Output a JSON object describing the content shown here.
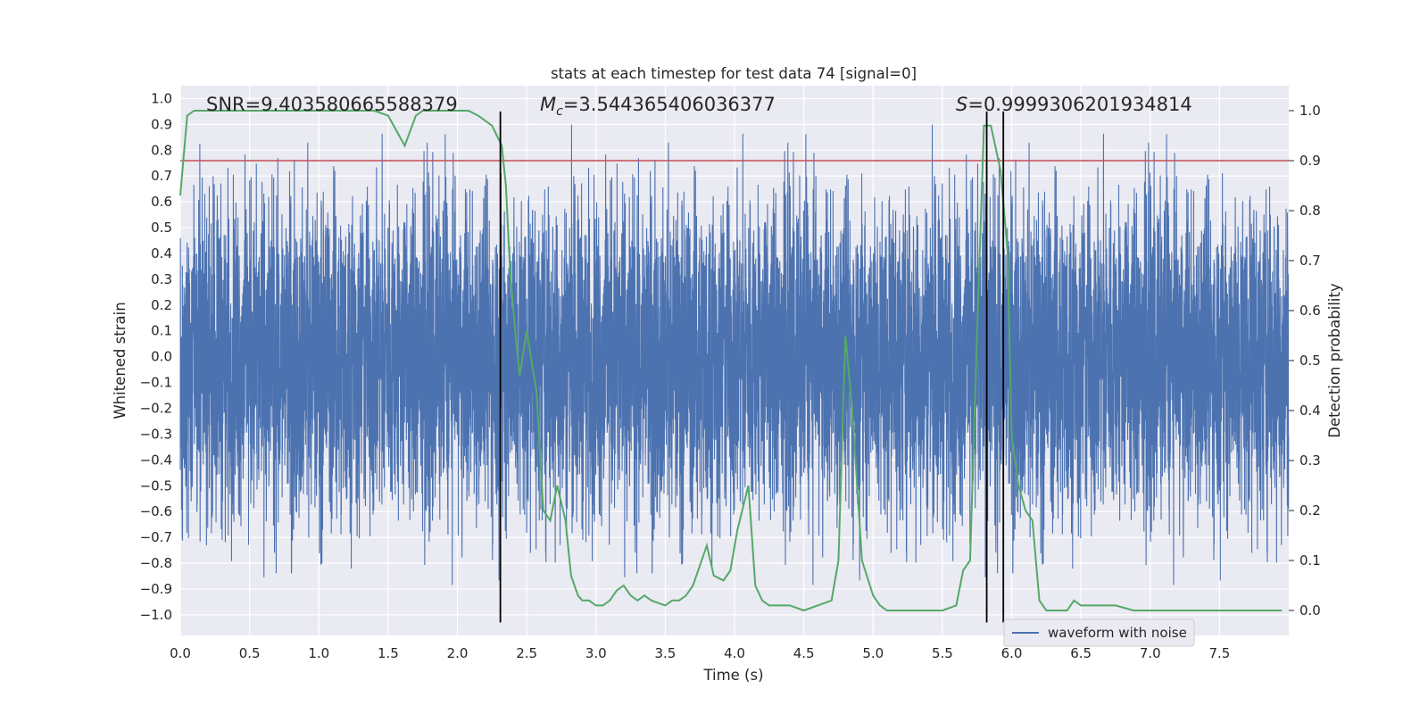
{
  "chart_data": {
    "type": "line",
    "title": "stats at each timestep for test data 74 [signal=0]",
    "xlabel": "Time (s)",
    "ylabel_left": "Whitened strain",
    "ylabel_right": "Detection probability",
    "xlim": [
      0.0,
      8.0
    ],
    "ylim_left": [
      -1.08,
      1.05
    ],
    "ylim_right": [
      -0.05,
      1.05
    ],
    "x_ticks": [
      "0.0",
      "0.5",
      "1.0",
      "1.5",
      "2.0",
      "2.5",
      "3.0",
      "3.5",
      "4.0",
      "4.5",
      "5.0",
      "5.5",
      "6.0",
      "6.5",
      "7.0",
      "7.5"
    ],
    "y_ticks_left": [
      "1.0",
      "0.9",
      "0.8",
      "0.7",
      "0.6",
      "0.5",
      "0.4",
      "0.3",
      "0.2",
      "0.1",
      "0.0",
      "−0.1",
      "−0.2",
      "−0.3",
      "−0.4",
      "−0.5",
      "−0.6",
      "−0.7",
      "−0.8",
      "−0.9",
      "−1.0"
    ],
    "y_ticks_right": [
      "1.0",
      "0.9",
      "0.8",
      "0.7",
      "0.6",
      "0.5",
      "0.4",
      "0.3",
      "0.2",
      "0.1",
      "0.0"
    ],
    "grid": true,
    "legend_position": "bottom-right",
    "annotations": {
      "snr": "SNR=9.403580665588379",
      "mc_symbol": "M",
      "mc_sub": "c",
      "mc_value": "=3.544365406036377",
      "s_symbol": "S",
      "s_value": "=0.9999306201934814"
    },
    "colors": {
      "waveform": "#4c72b0",
      "probability": "#55a868",
      "threshold": "#c44e52",
      "marker": "#000000",
      "background": "#eaeaf2"
    },
    "series": [
      {
        "name": "waveform with noise",
        "axis": "left",
        "note_values": "dense noisy strain signal, envelope approx ±0.5 with spikes",
        "sample_count": 8000,
        "envelope": [
          -0.5,
          0.55
        ],
        "spike_range": [
          -1.0,
          0.93
        ]
      },
      {
        "axis": "right",
        "x": [
          0.0,
          0.05,
          0.1,
          0.15,
          0.25,
          0.5,
          0.75,
          1.0,
          1.1,
          1.25,
          1.4,
          1.5,
          1.62,
          1.7,
          1.75,
          1.82,
          1.9,
          2.0,
          2.08,
          2.15,
          2.25,
          2.32,
          2.35,
          2.38,
          2.42,
          2.45,
          2.5,
          2.57,
          2.62,
          2.67,
          2.72,
          2.78,
          2.82,
          2.87,
          2.9,
          2.95,
          3.0,
          3.05,
          3.1,
          3.15,
          3.2,
          3.25,
          3.3,
          3.35,
          3.4,
          3.5,
          3.55,
          3.6,
          3.65,
          3.7,
          3.8,
          3.85,
          3.92,
          3.97,
          4.02,
          4.1,
          4.15,
          4.2,
          4.25,
          4.3,
          4.4,
          4.5,
          4.6,
          4.7,
          4.75,
          4.8,
          4.85,
          4.92,
          5.0,
          5.05,
          5.1,
          5.15,
          5.3,
          5.5,
          5.6,
          5.65,
          5.7,
          5.75,
          5.8,
          5.85,
          5.92,
          5.97,
          6.0,
          6.05,
          6.1,
          6.15,
          6.2,
          6.25,
          6.28,
          6.32,
          6.4,
          6.45,
          6.5,
          6.55,
          6.6,
          6.65,
          6.75,
          6.88,
          6.95,
          7.05,
          7.2,
          7.5,
          7.8,
          7.95
        ],
        "y": [
          0.83,
          0.99,
          1.0,
          1.0,
          1.0,
          1.0,
          1.0,
          1.0,
          1.0,
          1.0,
          1.0,
          0.99,
          0.93,
          0.99,
          1.0,
          1.0,
          1.0,
          1.0,
          1.0,
          0.99,
          0.97,
          0.93,
          0.85,
          0.68,
          0.55,
          0.47,
          0.56,
          0.44,
          0.2,
          0.18,
          0.25,
          0.18,
          0.07,
          0.03,
          0.02,
          0.02,
          0.01,
          0.01,
          0.02,
          0.04,
          0.05,
          0.03,
          0.02,
          0.03,
          0.02,
          0.01,
          0.02,
          0.02,
          0.03,
          0.05,
          0.13,
          0.07,
          0.06,
          0.08,
          0.16,
          0.25,
          0.05,
          0.02,
          0.01,
          0.01,
          0.01,
          0.0,
          0.01,
          0.02,
          0.1,
          0.55,
          0.4,
          0.1,
          0.03,
          0.01,
          0.0,
          0.0,
          0.0,
          0.0,
          0.01,
          0.08,
          0.1,
          0.55,
          0.97,
          0.97,
          0.88,
          0.72,
          0.35,
          0.25,
          0.2,
          0.18,
          0.02,
          0.0,
          0.0,
          0.0,
          0.0,
          0.02,
          0.01,
          0.01,
          0.01,
          0.01,
          0.01,
          0.0,
          0.0,
          0.0,
          0.0,
          0.0,
          0.0,
          0.0
        ]
      }
    ],
    "threshold_right": 0.9,
    "marker_x": [
      2.31,
      5.82,
      5.94
    ],
    "marker_span_left": [
      -1.03,
      0.95
    ]
  }
}
